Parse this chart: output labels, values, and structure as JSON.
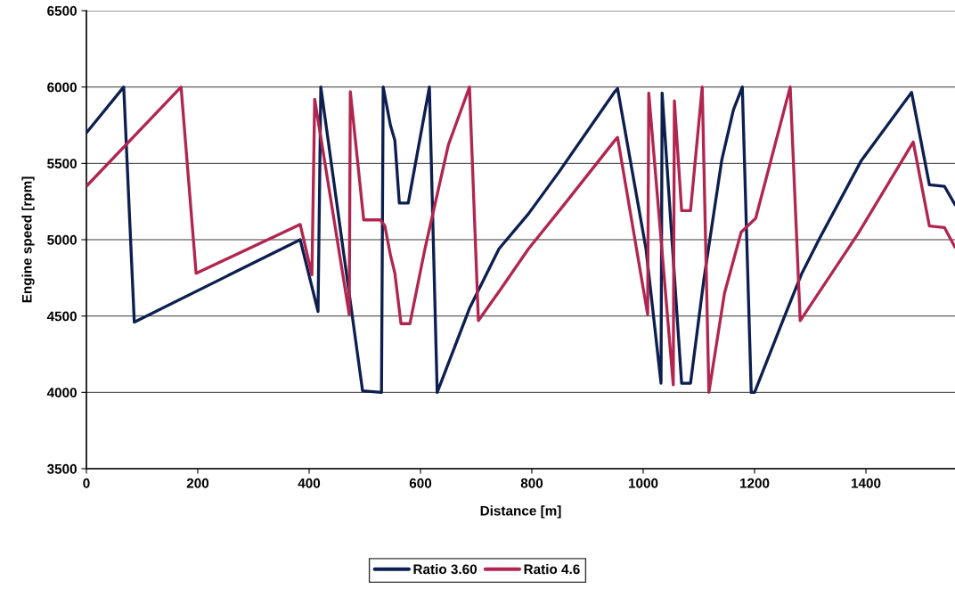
{
  "chart_data": {
    "type": "line",
    "xlabel": "Distance [m]",
    "ylabel": "Engine speed [rpm]",
    "xlim": [
      0,
      1560
    ],
    "xticks": [
      0,
      200,
      400,
      600,
      800,
      1000,
      1200,
      1400
    ],
    "ylim": [
      3500,
      6500
    ],
    "yticks": [
      3500,
      4000,
      4500,
      5000,
      5500,
      6000,
      6500
    ],
    "grid": "y",
    "legend": "bottom",
    "marker": "none",
    "line_style": "solid",
    "series": [
      {
        "name": "Ratio 3.60",
        "color": "#0d1f4f",
        "x": [
          0,
          67,
          86,
          384,
          416,
          421,
          496,
          530,
          533,
          546,
          554,
          562,
          578,
          616,
          630,
          688,
          741,
          794,
          848,
          949,
          954,
          1005,
          1032,
          1034,
          1069,
          1085,
          1109,
          1141,
          1162,
          1178,
          1194,
          1200,
          1253,
          1285,
          1317,
          1392,
          1482,
          1514,
          1541,
          1560
        ],
        "values": [
          5700,
          6000,
          4460,
          5000,
          4530,
          6000,
          4010,
          4000,
          6000,
          5750,
          5650,
          5240,
          5240,
          6000,
          4000,
          4550,
          4940,
          5170,
          5440,
          5970,
          5990,
          4940,
          4060,
          5960,
          4060,
          4060,
          4740,
          5520,
          5850,
          6000,
          4000,
          4000,
          4490,
          4780,
          5010,
          5520,
          5965,
          5360,
          5350,
          5230
        ]
      },
      {
        "name": "Ratio 4.6",
        "color": "#b0264f",
        "x": [
          0,
          170,
          197,
          384,
          405,
          410,
          472,
          474,
          498,
          528,
          536,
          546,
          554,
          565,
          581,
          608,
          650,
          688,
          704,
          741,
          794,
          858,
          949,
          954,
          1008,
          1010,
          1054,
          1056,
          1069,
          1085,
          1106,
          1118,
          1146,
          1176,
          1202,
          1264,
          1282,
          1386,
          1485,
          1514,
          1541,
          1560
        ],
        "values": [
          5350,
          6000,
          4780,
          5100,
          4770,
          5920,
          4510,
          5970,
          5130,
          5130,
          5090,
          4900,
          4780,
          4450,
          4450,
          4940,
          5620,
          6000,
          4470,
          4660,
          4940,
          5230,
          5650,
          5670,
          4510,
          5960,
          4050,
          5910,
          5190,
          5190,
          6000,
          4000,
          4650,
          5050,
          5140,
          6000,
          4470,
          5040,
          5640,
          5090,
          5080,
          4950
        ]
      }
    ]
  }
}
